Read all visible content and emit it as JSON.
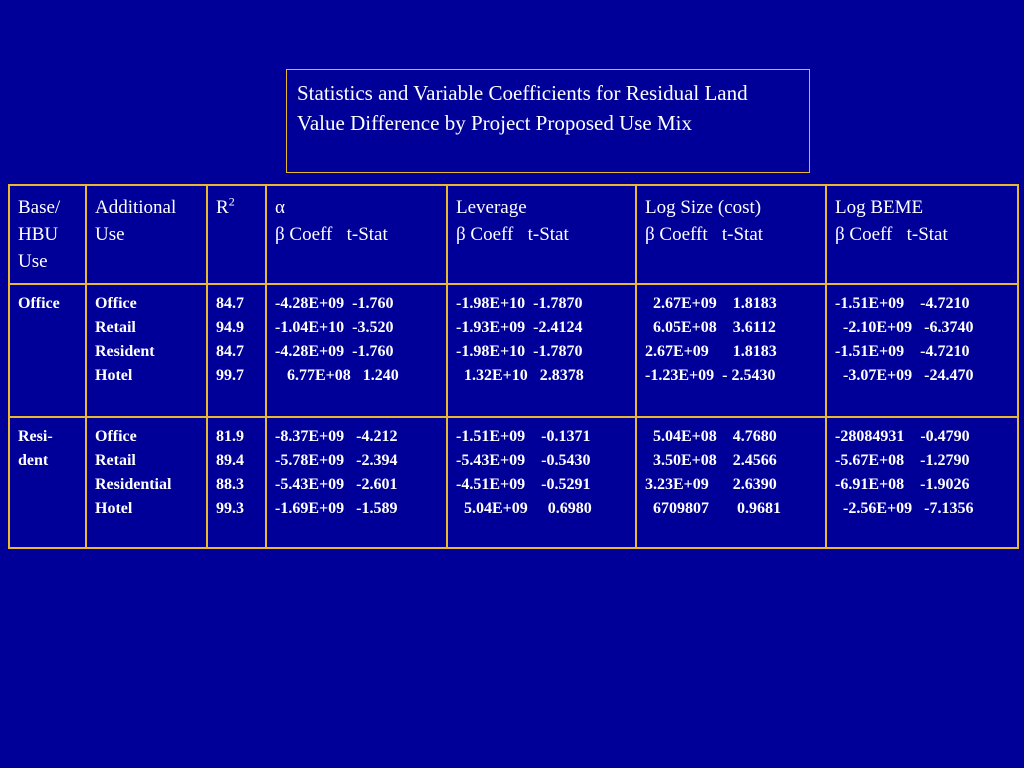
{
  "title": "Statistics and Variable Coefficients for Residual Land Value Difference by Project Proposed Use Mix",
  "headers": {
    "base": [
      "Base/",
      "HBU",
      "Use"
    ],
    "additional": [
      "Additional",
      "Use"
    ],
    "r2": {
      "base": "R",
      "sup": "2"
    },
    "alpha": [
      "α",
      "β Coeff   t-Stat"
    ],
    "leverage": [
      "Leverage",
      "β Coeff   t-Stat"
    ],
    "logsize": [
      "Log Size (cost)",
      "β Coefft   t-Stat"
    ],
    "logbeme": [
      "Log BEME",
      "β Coeff   t-Stat"
    ]
  },
  "rows": [
    {
      "base": [
        "Office"
      ],
      "additional": [
        "Office",
        "Retail",
        "Resident",
        "Hotel"
      ],
      "r2": [
        "84.7",
        "94.9",
        "84.7",
        "99.7"
      ],
      "alpha": [
        "-4.28E+09  -1.760",
        "-1.04E+10  -3.520",
        "-4.28E+09  -1.760",
        "   6.77E+08   1.240"
      ],
      "leverage": [
        "-1.98E+10  -1.7870",
        "-1.93E+09  -2.4124",
        "-1.98E+10  -1.7870",
        "  1.32E+10   2.8378"
      ],
      "logsize": [
        "  2.67E+09    1.8183",
        "  6.05E+08    3.6112",
        "2.67E+09      1.8183",
        "-1.23E+09  - 2.5430"
      ],
      "logbeme": [
        "-1.51E+09    -4.7210",
        "  -2.10E+09   -6.3740",
        "-1.51E+09    -4.7210",
        "  -3.07E+09   -24.470"
      ]
    },
    {
      "base": [
        "Resi-",
        "dent"
      ],
      "additional": [
        "Office",
        "Retail",
        "Residential",
        "Hotel"
      ],
      "r2": [
        "81.9",
        "89.4",
        "88.3",
        "99.3"
      ],
      "alpha": [
        "-8.37E+09   -4.212",
        "-5.78E+09   -2.394",
        "-5.43E+09   -2.601",
        "-1.69E+09   -1.589"
      ],
      "leverage": [
        "-1.51E+09    -0.1371",
        "-5.43E+09    -0.5430",
        "-4.51E+09    -0.5291",
        "  5.04E+09     0.6980"
      ],
      "logsize": [
        "  5.04E+08    4.7680",
        "  3.50E+08    2.4566",
        "3.23E+09      2.6390",
        "  6709807       0.9681"
      ],
      "logbeme": [
        "-28084931    -0.4790",
        "-5.67E+08    -1.2790",
        "-6.91E+08    -1.9026",
        "  -2.56E+09   -7.1356"
      ]
    }
  ]
}
